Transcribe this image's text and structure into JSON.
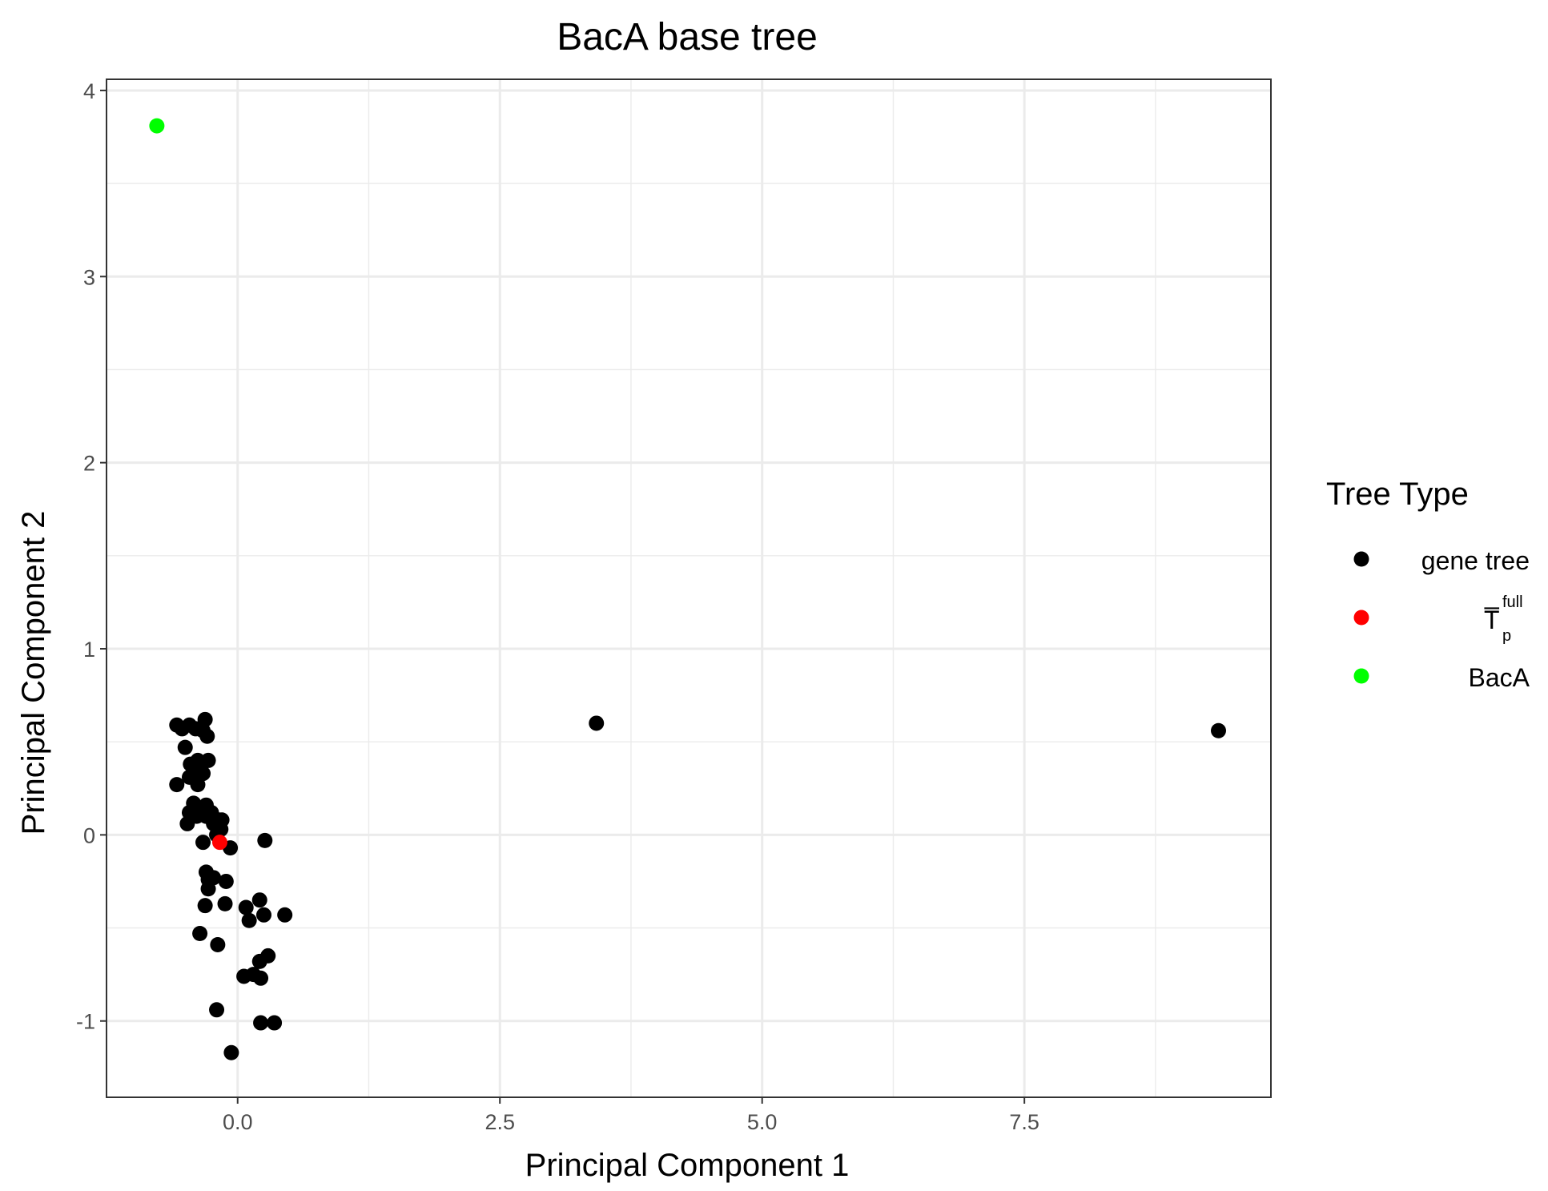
{
  "chart_data": {
    "type": "scatter",
    "title": "BacA base tree",
    "xlabel": "Principal Component 1",
    "ylabel": "Principal Component 2",
    "xlim": [
      -1.25,
      9.85
    ],
    "ylim": [
      -1.41,
      4.06
    ],
    "x_ticks": [
      0.0,
      2.5,
      5.0,
      7.5
    ],
    "x_tick_labels": [
      "0.0",
      "2.5",
      "5.0",
      "7.5"
    ],
    "x_minor": [
      -1.25,
      1.25,
      3.75,
      6.25,
      8.75
    ],
    "y_ticks": [
      -1,
      0,
      1,
      2,
      3,
      4
    ],
    "y_tick_labels": [
      "-1",
      "0",
      "1",
      "2",
      "3",
      "4"
    ],
    "y_minor": [
      -0.5,
      0.5,
      1.5,
      2.5,
      3.5
    ],
    "grid": true,
    "legend": {
      "title": "Tree Type",
      "position": "right",
      "entries": [
        {
          "name": "gene tree",
          "color": "#000000",
          "main": "gene tree"
        },
        {
          "name": "T̅_p^full",
          "color": "#ff0000",
          "main": "T̅",
          "sub": "p",
          "sup": "full"
        },
        {
          "name": "BacA",
          "color": "#00ff00",
          "main": "BacA"
        }
      ]
    },
    "series": [
      {
        "name": "gene tree",
        "color": "#000000",
        "points": [
          [
            -0.58,
            0.59
          ],
          [
            -0.53,
            0.57
          ],
          [
            -0.46,
            0.59
          ],
          [
            -0.4,
            0.57
          ],
          [
            -0.31,
            0.62
          ],
          [
            -0.33,
            0.56
          ],
          [
            -0.29,
            0.53
          ],
          [
            -0.5,
            0.47
          ],
          [
            -0.45,
            0.38
          ],
          [
            -0.38,
            0.4
          ],
          [
            -0.35,
            0.37
          ],
          [
            -0.28,
            0.4
          ],
          [
            -0.42,
            0.35
          ],
          [
            -0.33,
            0.33
          ],
          [
            -0.46,
            0.31
          ],
          [
            -0.38,
            0.27
          ],
          [
            -0.58,
            0.27
          ],
          [
            -0.42,
            0.17
          ],
          [
            -0.36,
            0.14
          ],
          [
            -0.3,
            0.16
          ],
          [
            -0.46,
            0.12
          ],
          [
            -0.39,
            0.1
          ],
          [
            -0.3,
            0.1
          ],
          [
            -0.25,
            0.12
          ],
          [
            -0.18,
            0.08
          ],
          [
            -0.23,
            0.06
          ],
          [
            -0.48,
            0.06
          ],
          [
            -0.15,
            0.08
          ],
          [
            -0.16,
            0.03
          ],
          [
            -0.2,
            0.0
          ],
          [
            -0.33,
            -0.04
          ],
          [
            -0.07,
            -0.07
          ],
          [
            0.26,
            -0.03
          ],
          [
            -0.3,
            -0.2
          ],
          [
            -0.28,
            -0.24
          ],
          [
            -0.23,
            -0.23
          ],
          [
            -0.11,
            -0.25
          ],
          [
            -0.28,
            -0.29
          ],
          [
            -0.31,
            -0.38
          ],
          [
            -0.12,
            -0.37
          ],
          [
            0.08,
            -0.39
          ],
          [
            0.21,
            -0.35
          ],
          [
            0.25,
            -0.43
          ],
          [
            0.11,
            -0.46
          ],
          [
            0.45,
            -0.43
          ],
          [
            -0.36,
            -0.53
          ],
          [
            -0.19,
            -0.59
          ],
          [
            0.29,
            -0.65
          ],
          [
            0.21,
            -0.68
          ],
          [
            0.06,
            -0.76
          ],
          [
            0.15,
            -0.75
          ],
          [
            0.22,
            -0.77
          ],
          [
            -0.2,
            -0.94
          ],
          [
            0.22,
            -1.01
          ],
          [
            0.35,
            -1.01
          ],
          [
            -0.06,
            -1.17
          ],
          [
            3.42,
            0.6
          ],
          [
            9.35,
            0.56
          ]
        ]
      },
      {
        "name": "T̅_p^full",
        "color": "#ff0000",
        "points": [
          [
            -0.17,
            -0.04
          ]
        ]
      },
      {
        "name": "BacA",
        "color": "#00ff00",
        "points": [
          [
            -0.77,
            3.81
          ]
        ]
      }
    ]
  }
}
